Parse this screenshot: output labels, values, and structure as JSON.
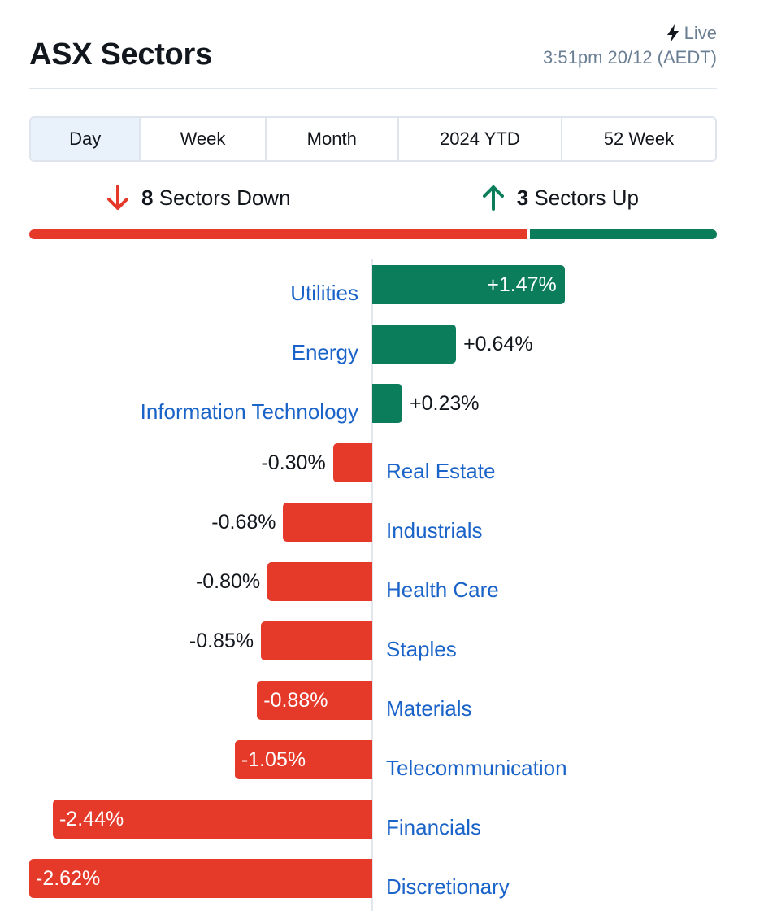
{
  "header": {
    "title": "ASX Sectors",
    "live_label": "Live",
    "timestamp": "3:51pm 20/12 (AEDT)"
  },
  "tabs": [
    {
      "label": "Day",
      "active": true
    },
    {
      "label": "Week",
      "active": false
    },
    {
      "label": "Month",
      "active": false
    },
    {
      "label": "2024 YTD",
      "active": false
    },
    {
      "label": "52 Week",
      "active": false
    }
  ],
  "summary": {
    "down_count": "8",
    "down_label": "Sectors Down",
    "up_count": "3",
    "up_label": "Sectors Up"
  },
  "colors": {
    "up": "#0b7d5a",
    "down": "#e5392a",
    "link": "#1a63c8"
  },
  "chart_data": {
    "type": "bar",
    "orientation": "horizontal",
    "categories": [
      "Utilities",
      "Energy",
      "Information Technology",
      "Real Estate",
      "Industrials",
      "Health Care",
      "Staples",
      "Materials",
      "Telecommunication",
      "Financials",
      "Discretionary"
    ],
    "values": [
      1.47,
      0.64,
      0.23,
      -0.3,
      -0.68,
      -0.8,
      -0.85,
      -0.88,
      -1.05,
      -2.44,
      -2.62
    ],
    "labels": [
      "+1.47%",
      "+0.64%",
      "+0.23%",
      "-0.30%",
      "-0.68%",
      "-0.80%",
      "-0.85%",
      "-0.88%",
      "-1.05%",
      "-2.44%",
      "-2.62%"
    ],
    "xlim": [
      -2.62,
      2.62
    ],
    "grid": false,
    "legend": "none"
  }
}
